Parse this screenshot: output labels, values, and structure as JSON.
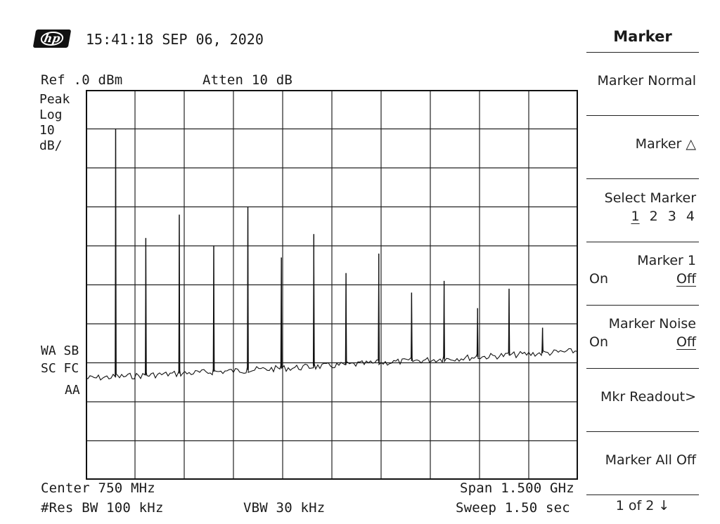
{
  "header": {
    "logo_text": "hp",
    "datetime": "15:41:18 SEP 06, 2020"
  },
  "settings": {
    "ref": "Ref .0 dBm",
    "atten": "Atten 10 dB",
    "detector": "Peak",
    "scale_type": "Log",
    "scale_value": "10",
    "scale_unit": "dB/",
    "center": "Center 750 MHz",
    "span": "Span 1.500 GHz",
    "res_bw": "#Res BW 100 kHz",
    "vbw": "VBW 30 kHz",
    "sweep": "Sweep 1.50  sec"
  },
  "indicators": {
    "line1": "WA SB",
    "line2": "SC FC",
    "line3": "AA"
  },
  "softkeys": {
    "title": "Marker",
    "marker_normal": "Marker Normal",
    "marker_delta": "Marker △",
    "select_marker": "Select Marker",
    "select_numbers": [
      "1",
      "2",
      "3",
      "4"
    ],
    "marker1_label": "Marker 1",
    "marker1_on": "On",
    "marker1_off": "Off",
    "marker_noise_label": "Marker Noise",
    "marker_noise_on": "On",
    "marker_noise_off": "Off",
    "mkr_readout": "Mkr Readout>",
    "marker_all_off": "Marker All Off",
    "page": "1 of 2 ↓"
  },
  "chart_data": {
    "type": "line",
    "x_unit": "MHz",
    "y_unit": "dBm",
    "xlim": [
      0,
      1500
    ],
    "ylim": [
      -100,
      0
    ],
    "grid": true,
    "noise_floor": [
      {
        "x": 0,
        "y": -74
      },
      {
        "x": 700,
        "y": -71
      },
      {
        "x": 1500,
        "y": -67
      }
    ],
    "peaks": [
      {
        "x": 91,
        "y": -10
      },
      {
        "x": 183,
        "y": -38
      },
      {
        "x": 285,
        "y": -32
      },
      {
        "x": 390,
        "y": -40
      },
      {
        "x": 494,
        "y": -30
      },
      {
        "x": 596,
        "y": -43
      },
      {
        "x": 695,
        "y": -37
      },
      {
        "x": 793,
        "y": -47
      },
      {
        "x": 893,
        "y": -42
      },
      {
        "x": 993,
        "y": -52
      },
      {
        "x": 1092,
        "y": -49
      },
      {
        "x": 1194,
        "y": -56
      },
      {
        "x": 1290,
        "y": -51
      },
      {
        "x": 1392,
        "y": -61
      }
    ]
  }
}
